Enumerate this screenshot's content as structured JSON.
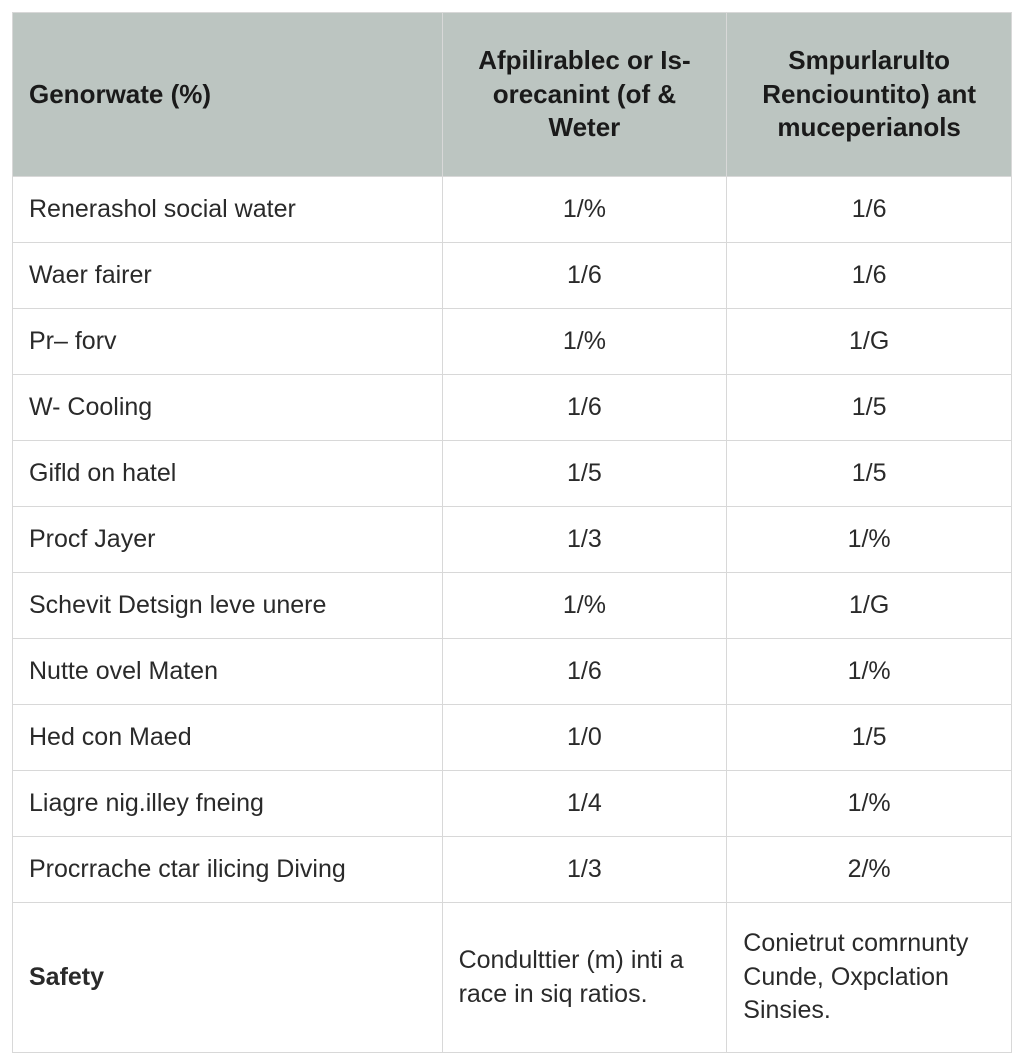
{
  "table": {
    "type": "table",
    "header_bg_color": "#bcc5c1",
    "row_bg_color": "#ffffff",
    "border_color": "#d8d8d8",
    "header_font_size_pt": 20,
    "body_font_size_pt": 19,
    "header_font_weight": "700",
    "column_widths_pct": [
      43,
      28.5,
      28.5
    ],
    "column_alignment": [
      "left",
      "center",
      "center"
    ],
    "columns": [
      "Genorwate (%)",
      "Afpilirablec or Is-orecanint (of & Weter",
      "Smpurlarulto Renciountito) ant muceperianols"
    ],
    "rows": [
      {
        "label": "Renerashol social water",
        "col2": "1/%",
        "col3": "1/6"
      },
      {
        "label": "Waer fairer",
        "col2": "1/6",
        "col3": "1/6"
      },
      {
        "label": "Pr– forv",
        "col2": "1/%",
        "col3": "1/G"
      },
      {
        "label": "W- Cooling",
        "col2": "1/6",
        "col3": "1/5"
      },
      {
        "label": "Gifld on hatel",
        "col2": "1/5",
        "col3": "1/5"
      },
      {
        "label": "Procf Jayer",
        "col2": "1/3",
        "col3": "1/%"
      },
      {
        "label": "Schevit Detsign leve unere",
        "col2": "1/%",
        "col3": "1/G"
      },
      {
        "label": "Nutte ovel Maten",
        "col2": "1/6",
        "col3": "1/%"
      },
      {
        "label": "Hed con Maed",
        "col2": "1/0",
        "col3": "1/5"
      },
      {
        "label": "Liagre nig.illey fneing",
        "col2": "1/4",
        "col3": "1/%"
      },
      {
        "label": "Procrrache ctar ilicing Diving",
        "col2": "1/3",
        "col3": "2/%"
      }
    ],
    "footer": {
      "label": "Safety",
      "col2": "Condulttier (m) inti a race in siq ratios.",
      "col3": "Conietrut comrnunty Cunde, Oxpclation Sinsies."
    }
  }
}
